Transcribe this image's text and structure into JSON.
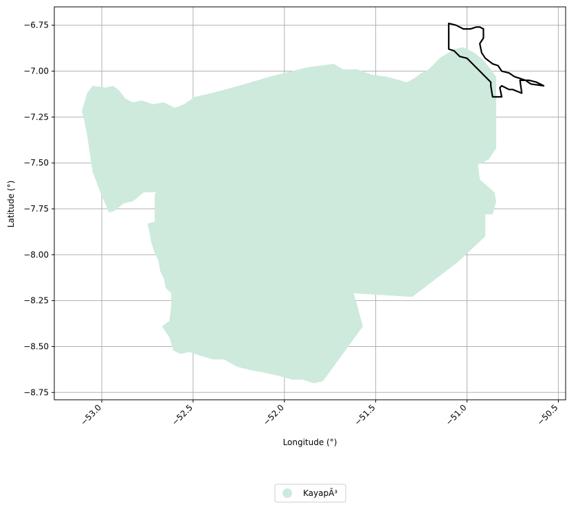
{
  "chart_data": {
    "type": "map",
    "title": "",
    "xlabel": "Longitude (°)",
    "ylabel": "Latitude (°)",
    "xlim": [
      -53.26,
      -50.46
    ],
    "ylim": [
      -8.79,
      -6.65
    ],
    "grid": true,
    "x_ticks": [
      -53.0,
      -52.5,
      -52.0,
      -51.5,
      -51.0,
      -50.5
    ],
    "x_tick_labels": [
      "−53.0",
      "−52.5",
      "−52.0",
      "−51.5",
      "−51.0",
      "−50.5"
    ],
    "y_ticks": [
      -6.75,
      -7.0,
      -7.25,
      -7.5,
      -7.75,
      -8.0,
      -8.25,
      -8.5,
      -8.75
    ],
    "y_tick_labels": [
      "−6.75",
      "−7.00",
      "−7.25",
      "−7.50",
      "−7.75",
      "−8.00",
      "−8.25",
      "−8.50",
      "−8.75"
    ],
    "legend": {
      "placement": "bottom-center",
      "entries": [
        {
          "label": "KayapÃ³",
          "color": "#cdeadd"
        }
      ]
    },
    "regions": [
      {
        "name": "KayapÃ³",
        "fill": "#cdeadd",
        "stroke": "none",
        "coords": [
          [
            -53.08,
            -7.12
          ],
          [
            -53.05,
            -7.08
          ],
          [
            -52.98,
            -7.09
          ],
          [
            -52.94,
            -7.08
          ],
          [
            -52.91,
            -7.1
          ],
          [
            -52.87,
            -7.15
          ],
          [
            -52.83,
            -7.17
          ],
          [
            -52.78,
            -7.16
          ],
          [
            -52.72,
            -7.18
          ],
          [
            -52.66,
            -7.17
          ],
          [
            -52.6,
            -7.2
          ],
          [
            -52.55,
            -7.18
          ],
          [
            -52.49,
            -7.14
          ],
          [
            -52.4,
            -7.12
          ],
          [
            -52.25,
            -7.08
          ],
          [
            -52.08,
            -7.03
          ],
          [
            -51.88,
            -6.98
          ],
          [
            -51.73,
            -6.96
          ],
          [
            -51.68,
            -6.99
          ],
          [
            -51.6,
            -6.99
          ],
          [
            -51.52,
            -7.02
          ],
          [
            -51.44,
            -7.03
          ],
          [
            -51.33,
            -7.06
          ],
          [
            -51.29,
            -7.04
          ],
          [
            -51.25,
            -7.01
          ],
          [
            -51.21,
            -6.99
          ],
          [
            -51.15,
            -6.93
          ],
          [
            -51.07,
            -6.88
          ],
          [
            -51.02,
            -6.87
          ],
          [
            -50.96,
            -6.9
          ],
          [
            -50.91,
            -6.94
          ],
          [
            -50.87,
            -6.99
          ],
          [
            -50.84,
            -7.03
          ],
          [
            -50.84,
            -7.15
          ],
          [
            -50.84,
            -7.42
          ],
          [
            -50.88,
            -7.48
          ],
          [
            -50.94,
            -7.51
          ],
          [
            -50.93,
            -7.59
          ],
          [
            -50.85,
            -7.66
          ],
          [
            -50.84,
            -7.71
          ],
          [
            -50.86,
            -7.78
          ],
          [
            -50.9,
            -7.78
          ],
          [
            -50.9,
            -7.9
          ],
          [
            -51.05,
            -8.04
          ],
          [
            -51.3,
            -8.23
          ],
          [
            -51.62,
            -8.21
          ],
          [
            -51.57,
            -8.39
          ],
          [
            -51.79,
            -8.69
          ],
          [
            -51.84,
            -8.7
          ],
          [
            -51.9,
            -8.68
          ],
          [
            -51.96,
            -8.68
          ],
          [
            -52.03,
            -8.66
          ],
          [
            -52.12,
            -8.64
          ],
          [
            -52.18,
            -8.63
          ],
          [
            -52.26,
            -8.61
          ],
          [
            -52.33,
            -8.57
          ],
          [
            -52.39,
            -8.57
          ],
          [
            -52.46,
            -8.55
          ],
          [
            -52.52,
            -8.53
          ],
          [
            -52.57,
            -8.54
          ],
          [
            -52.61,
            -8.52
          ],
          [
            -52.62,
            -8.48
          ],
          [
            -52.63,
            -8.45
          ],
          [
            -52.65,
            -8.42
          ],
          [
            -52.67,
            -8.39
          ],
          [
            -52.63,
            -8.36
          ],
          [
            -52.62,
            -8.28
          ],
          [
            -52.62,
            -8.21
          ],
          [
            -52.65,
            -8.18
          ],
          [
            -52.66,
            -8.13
          ],
          [
            -52.68,
            -8.09
          ],
          [
            -52.69,
            -8.03
          ],
          [
            -52.71,
            -7.99
          ],
          [
            -52.73,
            -7.93
          ],
          [
            -52.74,
            -7.87
          ],
          [
            -52.75,
            -7.83
          ],
          [
            -52.71,
            -7.82
          ],
          [
            -52.71,
            -7.77
          ],
          [
            -52.71,
            -7.67
          ],
          [
            -52.7,
            -7.66
          ],
          [
            -52.77,
            -7.66
          ],
          [
            -52.83,
            -7.71
          ],
          [
            -52.88,
            -7.72
          ],
          [
            -52.93,
            -7.76
          ],
          [
            -52.96,
            -7.77
          ],
          [
            -53.0,
            -7.68
          ],
          [
            -53.05,
            -7.55
          ],
          [
            -53.08,
            -7.35
          ],
          [
            -53.1,
            -7.25
          ],
          [
            -53.11,
            -7.22
          ],
          [
            -53.08,
            -7.12
          ]
        ]
      },
      {
        "name": "",
        "fill": "none",
        "stroke": "#000000",
        "coords": [
          [
            -51.1,
            -6.74
          ],
          [
            -51.06,
            -6.75
          ],
          [
            -51.02,
            -6.77
          ],
          [
            -50.98,
            -6.77
          ],
          [
            -50.95,
            -6.76
          ],
          [
            -50.93,
            -6.76
          ],
          [
            -50.91,
            -6.77
          ],
          [
            -50.91,
            -6.82
          ],
          [
            -50.93,
            -6.85
          ],
          [
            -50.92,
            -6.9
          ],
          [
            -50.9,
            -6.93
          ],
          [
            -50.86,
            -6.96
          ],
          [
            -50.83,
            -6.97
          ],
          [
            -50.81,
            -7.0
          ],
          [
            -50.77,
            -7.01
          ],
          [
            -50.74,
            -7.03
          ],
          [
            -50.71,
            -7.04
          ],
          [
            -50.68,
            -7.05
          ],
          [
            -50.65,
            -7.07
          ],
          [
            -50.58,
            -7.08
          ],
          [
            -50.62,
            -7.06
          ],
          [
            -50.66,
            -7.05
          ],
          [
            -50.71,
            -7.05
          ],
          [
            -50.7,
            -7.12
          ],
          [
            -50.75,
            -7.1
          ],
          [
            -50.77,
            -7.1
          ],
          [
            -50.81,
            -7.08
          ],
          [
            -50.82,
            -7.09
          ],
          [
            -50.81,
            -7.14
          ],
          [
            -50.86,
            -7.14
          ],
          [
            -50.87,
            -7.08
          ],
          [
            -50.87,
            -7.06
          ],
          [
            -50.9,
            -7.03
          ],
          [
            -50.94,
            -6.99
          ],
          [
            -50.97,
            -6.96
          ],
          [
            -51.0,
            -6.93
          ],
          [
            -51.04,
            -6.92
          ],
          [
            -51.07,
            -6.89
          ],
          [
            -51.1,
            -6.88
          ],
          [
            -51.1,
            -6.74
          ]
        ]
      }
    ]
  }
}
